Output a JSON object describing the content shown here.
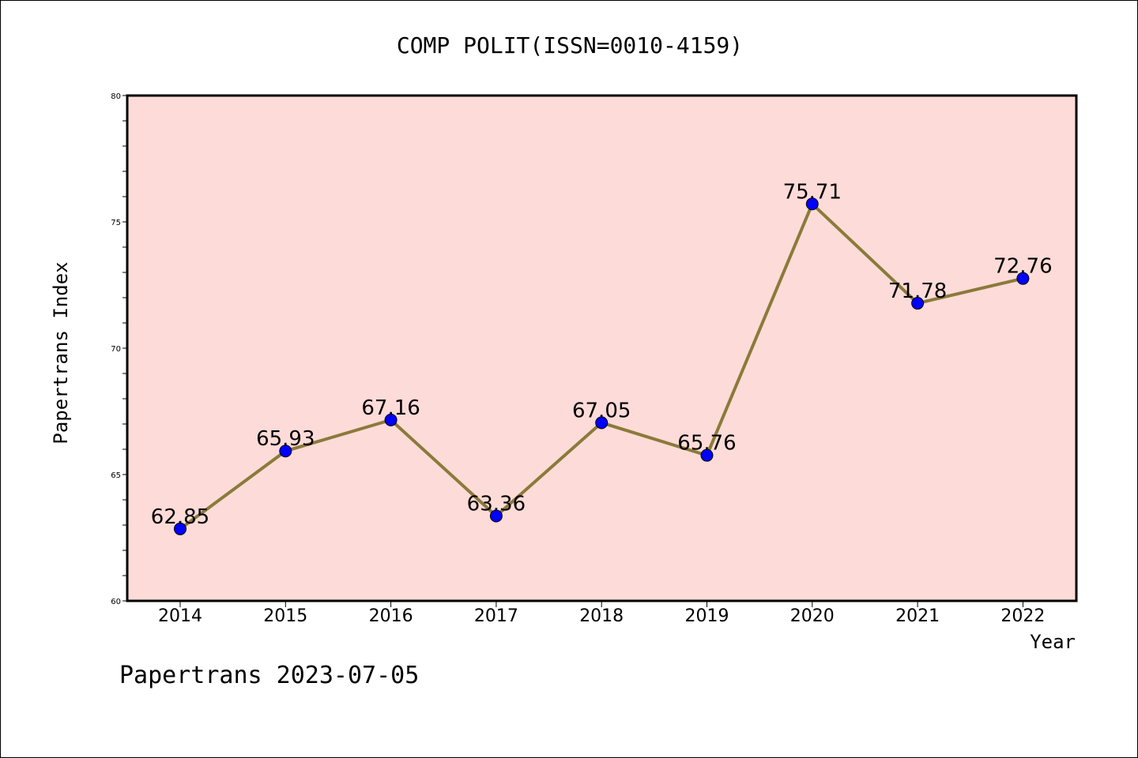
{
  "chart_data": {
    "type": "line",
    "title": "COMP POLIT(ISSN=0010-4159)",
    "xlabel": "Year",
    "ylabel": "Papertrans Index",
    "categories": [
      "2014",
      "2015",
      "2016",
      "2017",
      "2018",
      "2019",
      "2020",
      "2021",
      "2022"
    ],
    "series": [
      {
        "values": [
          62.85,
          65.93,
          67.16,
          63.36,
          67.05,
          65.76,
          75.71,
          71.78,
          72.76
        ],
        "labels": [
          "62.85",
          "65.93",
          "67.16",
          "63.36",
          "67.05",
          "65.76",
          "75.71",
          "71.78",
          "72.76"
        ]
      }
    ],
    "ylim": [
      60,
      80
    ],
    "yticks": [
      "60",
      "65",
      "70",
      "75",
      "80"
    ],
    "grid": false,
    "colors": {
      "plot_background": "#fddbd8",
      "line": "#8b7a3a",
      "marker": "#0000ff"
    }
  },
  "footer": "Papertrans 2023-07-05"
}
